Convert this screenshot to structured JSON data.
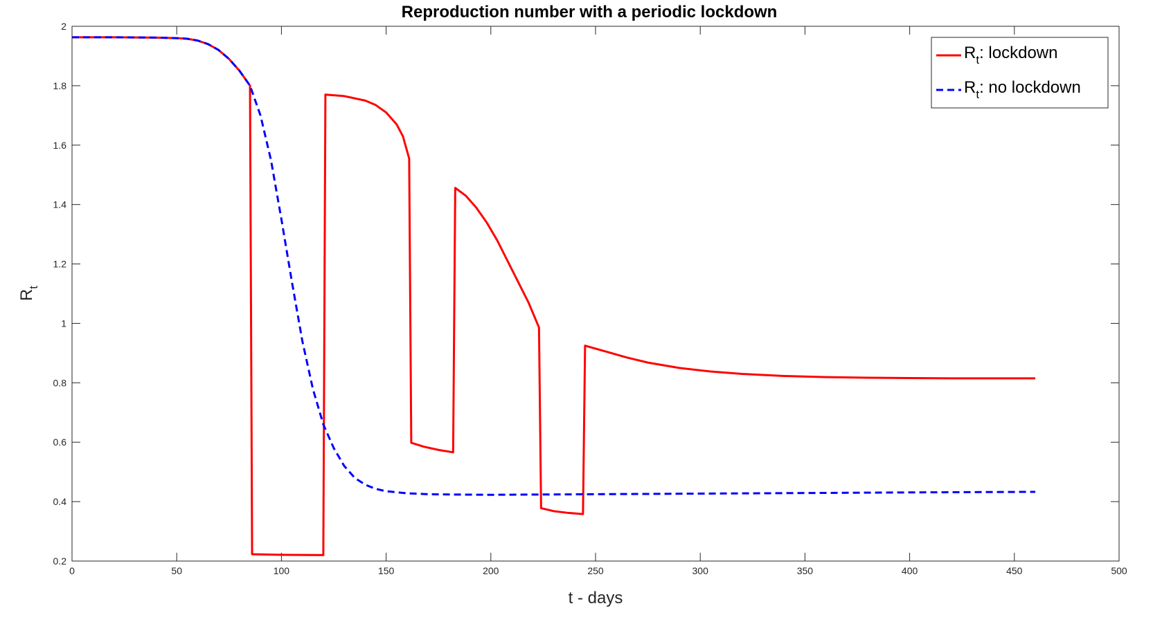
{
  "chart_data": {
    "type": "line",
    "title": "Reproduction number with a periodic lockdown",
    "xlabel": "t - days",
    "ylabel_main": "R",
    "ylabel_sub": "t",
    "xlim": [
      0,
      500
    ],
    "ylim": [
      0.2,
      2
    ],
    "xticks": [
      "0",
      "50",
      "100",
      "150",
      "200",
      "250",
      "300",
      "350",
      "400",
      "450",
      "500"
    ],
    "yticks": [
      "0.2",
      "0.4",
      "0.6",
      "0.8",
      "1",
      "1.2",
      "1.4",
      "1.6",
      "1.8",
      "2"
    ],
    "grid": false,
    "legend_position": "top-right",
    "series": [
      {
        "name": "R_t: lockdown",
        "legend_main": "R",
        "legend_sub": "t",
        "legend_rest": ": lockdown",
        "color": "#ff0000",
        "style": "solid",
        "points": [
          [
            0,
            1.963
          ],
          [
            20,
            1.963
          ],
          [
            40,
            1.962
          ],
          [
            50,
            1.96
          ],
          [
            55,
            1.958
          ],
          [
            60,
            1.952
          ],
          [
            65,
            1.94
          ],
          [
            70,
            1.92
          ],
          [
            75,
            1.89
          ],
          [
            80,
            1.85
          ],
          [
            85,
            1.8
          ],
          [
            86,
            0.223
          ],
          [
            100,
            0.221
          ],
          [
            120,
            0.22
          ],
          [
            121,
            1.77
          ],
          [
            130,
            1.765
          ],
          [
            140,
            1.75
          ],
          [
            145,
            1.735
          ],
          [
            150,
            1.71
          ],
          [
            155,
            1.67
          ],
          [
            158,
            1.63
          ],
          [
            161,
            1.555
          ],
          [
            162,
            0.598
          ],
          [
            168,
            0.585
          ],
          [
            175,
            0.574
          ],
          [
            182,
            0.566
          ],
          [
            183,
            1.456
          ],
          [
            188,
            1.43
          ],
          [
            193,
            1.39
          ],
          [
            198,
            1.34
          ],
          [
            203,
            1.28
          ],
          [
            208,
            1.21
          ],
          [
            213,
            1.14
          ],
          [
            218,
            1.07
          ],
          [
            223,
            0.986
          ],
          [
            224,
            0.378
          ],
          [
            230,
            0.368
          ],
          [
            237,
            0.362
          ],
          [
            244,
            0.358
          ],
          [
            245,
            0.925
          ],
          [
            255,
            0.905
          ],
          [
            265,
            0.885
          ],
          [
            275,
            0.868
          ],
          [
            290,
            0.85
          ],
          [
            305,
            0.838
          ],
          [
            320,
            0.83
          ],
          [
            340,
            0.823
          ],
          [
            360,
            0.819
          ],
          [
            380,
            0.817
          ],
          [
            400,
            0.816
          ],
          [
            420,
            0.815
          ],
          [
            440,
            0.815
          ],
          [
            460,
            0.815
          ]
        ]
      },
      {
        "name": "R_t: no lockdown",
        "legend_main": "R",
        "legend_sub": "t",
        "legend_rest": ": no lockdown",
        "color": "#0000ff",
        "style": "dashed",
        "points": [
          [
            0,
            1.963
          ],
          [
            20,
            1.963
          ],
          [
            40,
            1.962
          ],
          [
            50,
            1.96
          ],
          [
            55,
            1.958
          ],
          [
            60,
            1.952
          ],
          [
            65,
            1.94
          ],
          [
            70,
            1.92
          ],
          [
            75,
            1.89
          ],
          [
            80,
            1.85
          ],
          [
            85,
            1.8
          ],
          [
            90,
            1.7
          ],
          [
            95,
            1.55
          ],
          [
            100,
            1.35
          ],
          [
            105,
            1.14
          ],
          [
            110,
            0.94
          ],
          [
            115,
            0.78
          ],
          [
            120,
            0.66
          ],
          [
            125,
            0.58
          ],
          [
            130,
            0.52
          ],
          [
            135,
            0.48
          ],
          [
            140,
            0.457
          ],
          [
            145,
            0.443
          ],
          [
            150,
            0.435
          ],
          [
            160,
            0.428
          ],
          [
            170,
            0.425
          ],
          [
            180,
            0.424
          ],
          [
            200,
            0.423
          ],
          [
            225,
            0.424
          ],
          [
            250,
            0.425
          ],
          [
            300,
            0.427
          ],
          [
            350,
            0.429
          ],
          [
            400,
            0.431
          ],
          [
            460,
            0.433
          ]
        ]
      }
    ]
  }
}
